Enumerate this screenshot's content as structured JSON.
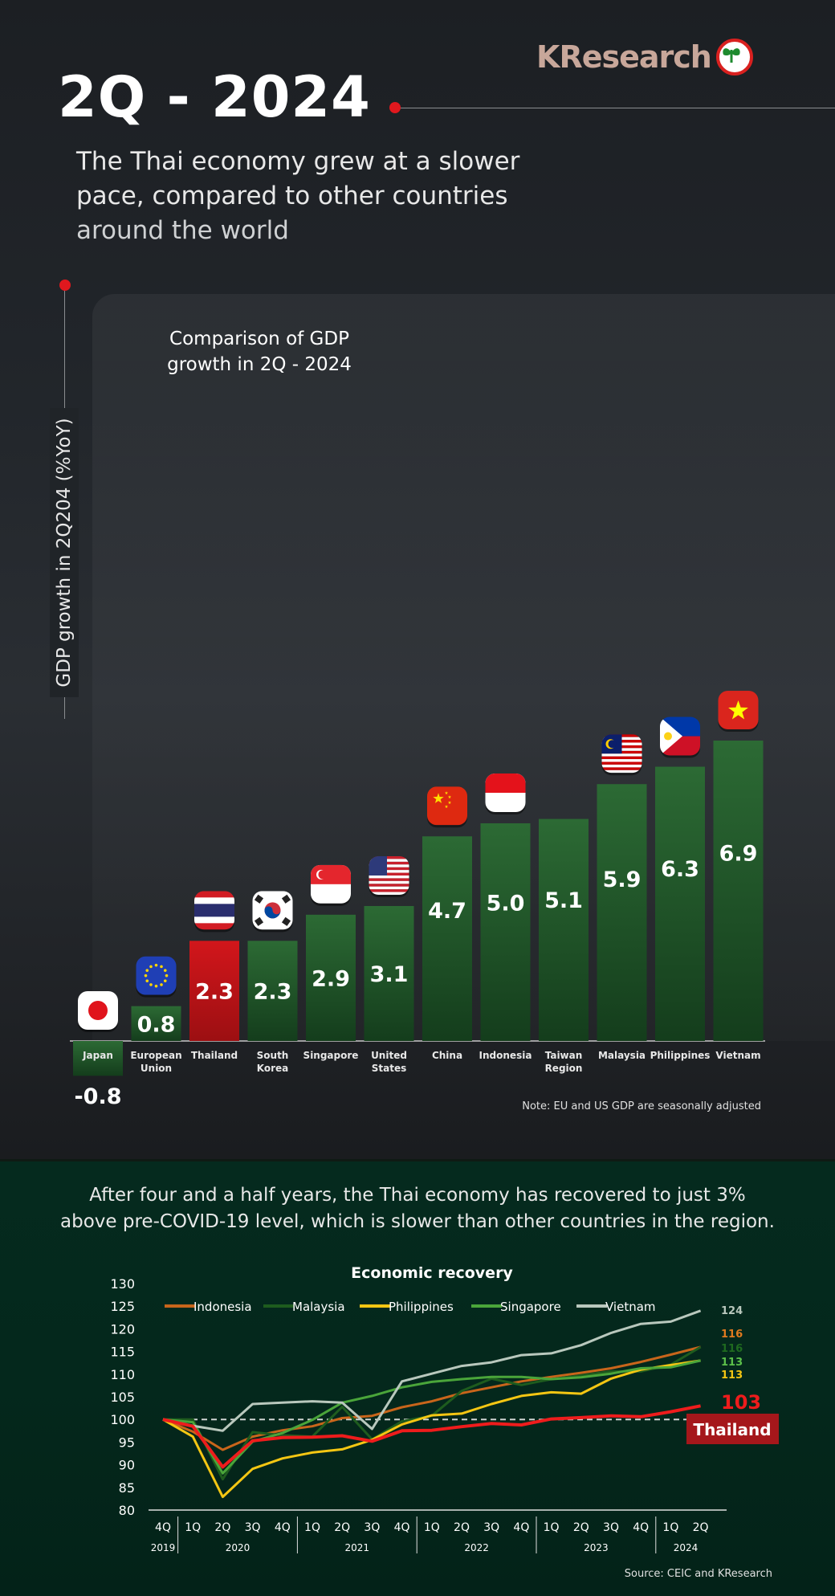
{
  "header": {
    "title": "2Q - 2024",
    "brand": "KResearch",
    "subtitle_lines": [
      "The Thai economy grew at a slower",
      "pace, compared to other countries",
      "around the world"
    ]
  },
  "gdp_chart": {
    "title_lines": [
      "Comparison of GDP",
      "growth in 2Q - 2024"
    ],
    "ylabel": "GDP growth in 2Q204 (%YoY)",
    "note": "Note: EU and US GDP are seasonally adjusted"
  },
  "recovery": {
    "intro_lines": [
      "After four and a half years, the Thai economy has recovered to just 3%",
      "above pre-COVID-19 level, which is slower than other countries in the region."
    ],
    "title": "Economic recovery",
    "source": "Source: CEIC and KResearch",
    "thailand_label": "Thailand"
  },
  "colors": {
    "green_bar": "#1f5a2a",
    "red_bar": "#c8151b",
    "indonesia": "#c8651b",
    "malaysia": "#1e5c1e",
    "philippines": "#f4c613",
    "singapore": "#4aa53a",
    "vietnam": "#b9c8bd",
    "thailand": "#ee1c1c"
  },
  "chart_data": [
    {
      "type": "bar",
      "categories": [
        "Japan",
        "European Union",
        "Thailand",
        "South Korea",
        "Singapore",
        "United States",
        "China",
        "Indonesia",
        "Taiwan Region",
        "Malaysia",
        "Philippines",
        "Vietnam"
      ],
      "category_lines": [
        [
          "Japan"
        ],
        [
          "European",
          "Union"
        ],
        [
          "Thailand"
        ],
        [
          "South",
          "Korea"
        ],
        [
          "Singapore"
        ],
        [
          "United",
          "States"
        ],
        [
          "China"
        ],
        [
          "Indonesia"
        ],
        [
          "Taiwan",
          "Region"
        ],
        [
          "Malaysia"
        ],
        [
          "Philippines"
        ],
        [
          "Vietnam"
        ]
      ],
      "values": [
        -0.8,
        0.8,
        2.3,
        2.3,
        2.9,
        3.1,
        4.7,
        5.0,
        5.1,
        5.9,
        6.3,
        6.9
      ],
      "value_labels": [
        "-0.8",
        "0.8",
        "2.3",
        "2.3",
        "2.9",
        "3.1",
        "4.7",
        "5.0",
        "5.1",
        "5.9",
        "6.3",
        "6.9"
      ],
      "flags": [
        "japan-flag-icon",
        "eu-flag-icon",
        "thailand-flag-icon",
        "south-korea-flag-icon",
        "singapore-flag-icon",
        "us-flag-icon",
        "china-flag-icon",
        "indonesia-flag-icon",
        "",
        "malaysia-flag-icon",
        "philippines-flag-icon",
        "vietnam-flag-icon"
      ],
      "highlight": "Thailand",
      "title": "Comparison of GDP growth in 2Q - 2024",
      "ylabel": "GDP growth in 2Q204 (%YoY)"
    },
    {
      "type": "line",
      "title": "Economic recovery",
      "x": [
        "4Q19",
        "1Q20",
        "2Q20",
        "3Q20",
        "4Q20",
        "1Q21",
        "2Q21",
        "3Q21",
        "4Q21",
        "1Q22",
        "2Q22",
        "3Q22",
        "4Q22",
        "1Q23",
        "2Q23",
        "3Q23",
        "4Q23",
        "1Q24",
        "2Q24"
      ],
      "x_tick_labels": [
        "4Q",
        "1Q",
        "2Q",
        "3Q",
        "4Q",
        "1Q",
        "2Q",
        "3Q",
        "4Q",
        "1Q",
        "2Q",
        "3Q",
        "4Q",
        "1Q",
        "2Q",
        "3Q",
        "4Q",
        "1Q",
        "2Q"
      ],
      "year_groups": [
        {
          "label": "2019",
          "from": 0,
          "to": 0
        },
        {
          "label": "2020",
          "from": 1,
          "to": 4
        },
        {
          "label": "2021",
          "from": 5,
          "to": 8
        },
        {
          "label": "2022",
          "from": 9,
          "to": 12
        },
        {
          "label": "2023",
          "from": 13,
          "to": 16
        },
        {
          "label": "2024",
          "from": 17,
          "to": 18
        }
      ],
      "ylim": [
        80,
        130
      ],
      "yticks": [
        80,
        85,
        90,
        95,
        100,
        105,
        110,
        115,
        120,
        125,
        130
      ],
      "baseline": 100,
      "series": [
        {
          "name": "Indonesia",
          "color": "#c8651b",
          "values": [
            100,
            97.3,
            93.3,
            96.2,
            97.6,
            98.5,
            100.3,
            100.8,
            102.7,
            104,
            105.8,
            107.1,
            108.4,
            109.4,
            110.3,
            111.3,
            112.7,
            114.3,
            116
          ],
          "end_label": "116"
        },
        {
          "name": "Malaysia",
          "color": "#1e5c1e",
          "values": [
            100,
            100,
            86.8,
            97.2,
            96.5,
            96.2,
            102.8,
            95.6,
            99.6,
            100.8,
            106.3,
            109,
            107.6,
            108.9,
            109.7,
            110.6,
            110.6,
            112.1,
            116
          ],
          "end_label": "116"
        },
        {
          "name": "Philippines",
          "color": "#f4c613",
          "values": [
            100,
            96.2,
            82.9,
            89.1,
            91.4,
            92.7,
            93.4,
            95.5,
            98.9,
            100.9,
            101.3,
            103.4,
            105.2,
            106,
            105.7,
            109,
            111,
            112,
            113
          ],
          "end_label": "113"
        },
        {
          "name": "Singapore",
          "color": "#4aa53a",
          "values": [
            100,
            99.4,
            88.1,
            95.1,
            97,
            99.9,
            103.7,
            105.2,
            107.1,
            108.3,
            108.9,
            109.4,
            109.4,
            108.9,
            109.3,
            110.1,
            111.3,
            111.5,
            113
          ],
          "end_label": "113"
        },
        {
          "name": "Vietnam",
          "color": "#b9c8bd",
          "values": [
            100,
            98.6,
            97.5,
            103.4,
            103.7,
            104,
            103.7,
            97.9,
            108.4,
            110.1,
            111.8,
            112.6,
            114.2,
            114.6,
            116.4,
            119.1,
            121.1,
            121.6,
            124
          ],
          "end_label": "124"
        },
        {
          "name": "Thailand",
          "color": "#ee1c1c",
          "values": [
            100,
            98.5,
            89.5,
            95.3,
            96,
            96.1,
            96.4,
            95.2,
            97.5,
            97.6,
            98.4,
            99.1,
            98.8,
            100.1,
            100.4,
            100.8,
            100.6,
            101.7,
            103
          ],
          "end_label": "103"
        }
      ]
    }
  ]
}
